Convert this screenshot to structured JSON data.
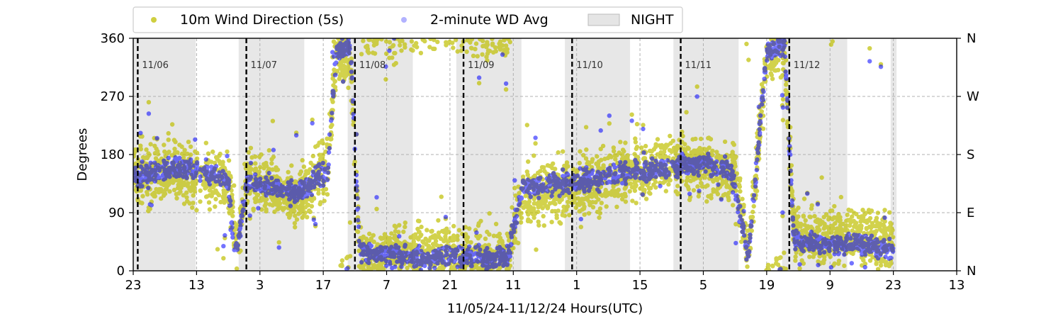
{
  "chart_data": {
    "type": "scatter",
    "title": "",
    "xlabel": "11/05/24-11/12/24  Hours(UTC)",
    "ylabel": "Degrees",
    "ylim": [
      0,
      360
    ],
    "xlim_hours": [
      0,
      182
    ],
    "x_ticks": [
      {
        "h": 0,
        "label": "23"
      },
      {
        "h": 14,
        "label": "13"
      },
      {
        "h": 28,
        "label": "3"
      },
      {
        "h": 42,
        "label": "17"
      },
      {
        "h": 56,
        "label": "7"
      },
      {
        "h": 70,
        "label": "21"
      },
      {
        "h": 84,
        "label": "11"
      },
      {
        "h": 98,
        "label": "1"
      },
      {
        "h": 112,
        "label": "15"
      },
      {
        "h": 126,
        "label": "5"
      },
      {
        "h": 140,
        "label": "19"
      },
      {
        "h": 154,
        "label": "9"
      },
      {
        "h": 168,
        "label": "23"
      },
      {
        "h": 182,
        "label": "13"
      }
    ],
    "y_ticks": [
      0,
      90,
      180,
      270,
      360
    ],
    "y2_ticks": [
      {
        "v": 0,
        "label": "N"
      },
      {
        "v": 90,
        "label": "E"
      },
      {
        "v": 180,
        "label": "S"
      },
      {
        "v": 270,
        "label": "W"
      },
      {
        "v": 360,
        "label": "N"
      }
    ],
    "day_markers": [
      {
        "h": 1,
        "label": "11/06"
      },
      {
        "h": 25,
        "label": "11/07"
      },
      {
        "h": 49,
        "label": "11/08"
      },
      {
        "h": 73,
        "label": "11/09"
      },
      {
        "h": 97,
        "label": "11/10"
      },
      {
        "h": 121,
        "label": "11/11"
      },
      {
        "h": 145,
        "label": "11/12"
      }
    ],
    "night_periods": [
      [
        0,
        13.8
      ],
      [
        23.3,
        37.8
      ],
      [
        47.4,
        61.8
      ],
      [
        71.4,
        85.8
      ],
      [
        95.4,
        109.8
      ],
      [
        119.4,
        133.8
      ],
      [
        143.4,
        157.8
      ],
      [
        167.4,
        168.7
      ]
    ],
    "legend": {
      "placement": "above-top",
      "items": [
        {
          "label": "10m Wind Direction (5s)",
          "color": "#bfbf00",
          "kind": "point"
        },
        {
          "label": "2-minute WD Avg",
          "color": "#0000ff",
          "kind": "point-faded"
        },
        {
          "label": "NIGHT",
          "color": "#d3d3d3",
          "kind": "patch"
        }
      ]
    },
    "grid": true,
    "series": [
      {
        "name": "10m Wind Direction (5s)",
        "color": "#bfbf00",
        "approx_trend": [
          [
            0,
            150
          ],
          [
            10,
            155
          ],
          [
            18,
            140
          ],
          [
            21,
            140
          ],
          [
            23,
            30
          ],
          [
            25,
            150
          ],
          [
            31,
            130
          ],
          [
            36,
            110
          ],
          [
            40,
            140
          ],
          [
            43,
            170
          ],
          [
            45,
            330
          ],
          [
            48,
            340
          ],
          [
            50,
            20
          ],
          [
            60,
            20
          ],
          [
            65,
            30
          ],
          [
            70,
            30
          ],
          [
            78,
            20
          ],
          [
            83,
            20
          ],
          [
            86,
            120
          ],
          [
            96,
            125
          ],
          [
            108,
            150
          ],
          [
            118,
            165
          ],
          [
            126,
            160
          ],
          [
            133,
            155
          ],
          [
            136,
            20
          ],
          [
            140,
            340
          ],
          [
            144,
            340
          ],
          [
            146,
            60
          ],
          [
            154,
            50
          ],
          [
            160,
            60
          ],
          [
            168,
            40
          ]
        ]
      },
      {
        "name": "2-minute WD Avg",
        "color": "#0000ff",
        "approx_trend": [
          [
            0,
            145
          ],
          [
            10,
            160
          ],
          [
            18,
            150
          ],
          [
            21,
            140
          ],
          [
            22,
            50
          ],
          [
            23,
            30
          ],
          [
            25,
            140
          ],
          [
            31,
            130
          ],
          [
            36,
            120
          ],
          [
            40,
            140
          ],
          [
            43,
            160
          ],
          [
            45,
            340
          ],
          [
            48,
            350
          ],
          [
            50,
            30
          ],
          [
            60,
            20
          ],
          [
            65,
            20
          ],
          [
            70,
            25
          ],
          [
            78,
            20
          ],
          [
            83,
            25
          ],
          [
            86,
            130
          ],
          [
            96,
            135
          ],
          [
            108,
            150
          ],
          [
            118,
            160
          ],
          [
            126,
            165
          ],
          [
            132,
            160
          ],
          [
            136,
            20
          ],
          [
            140,
            340
          ],
          [
            144,
            350
          ],
          [
            146,
            50
          ],
          [
            154,
            40
          ],
          [
            160,
            45
          ],
          [
            168,
            30
          ]
        ]
      }
    ]
  }
}
